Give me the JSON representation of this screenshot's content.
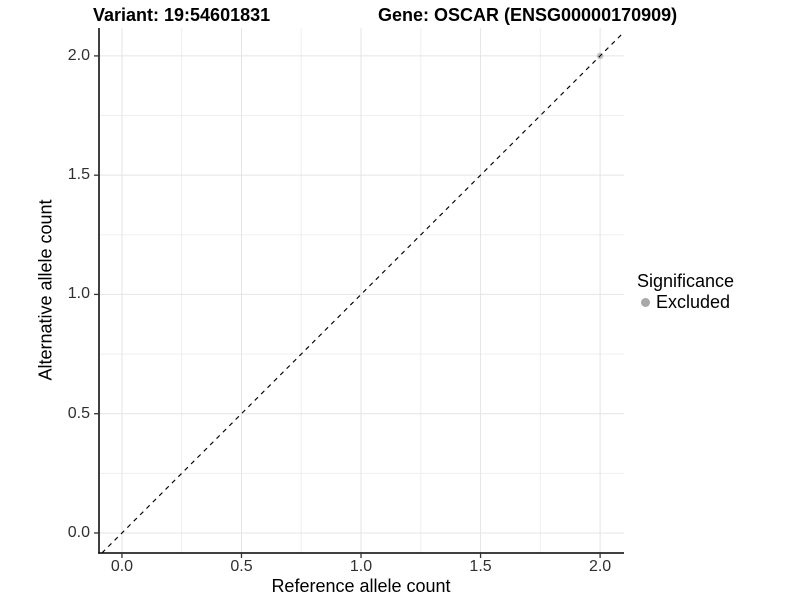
{
  "titles": {
    "variant": "Variant: 19:54601831",
    "gene": "Gene: OSCAR (ENSG00000170909)"
  },
  "legend": {
    "title": "Significance",
    "items": [
      {
        "label": "Excluded",
        "color": "#a8a8a8"
      }
    ]
  },
  "colors": {
    "background": "#ffffff",
    "axis_line": "#000000",
    "grid_major": "#e4e4e4",
    "grid_minor": "#efefef",
    "tick_mark": "#333333",
    "tick_text": "#303030",
    "dashed_line": "#000000",
    "point": "#c2c2c2"
  },
  "chart_data": {
    "type": "scatter",
    "title": "Variant: 19:54601831    Gene: OSCAR (ENSG00000170909)",
    "xlabel": "Reference allele count",
    "ylabel": "Alternative allele count",
    "xlim": [
      -0.096,
      2.1
    ],
    "ylim": [
      -0.084,
      2.117
    ],
    "x_ticks": [
      0.0,
      0.5,
      1.0,
      1.5,
      2.0
    ],
    "y_ticks": [
      0.0,
      0.5,
      1.0,
      1.5,
      2.0
    ],
    "x_tick_labels": [
      "0.0",
      "0.5",
      "1.0",
      "1.5",
      "2.0"
    ],
    "y_tick_labels": [
      "0.0",
      "0.5",
      "1.0",
      "1.5",
      "2.0"
    ],
    "x_minor_ticks": [
      0.25,
      0.75,
      1.25,
      1.75
    ],
    "y_minor_ticks": [
      0.25,
      0.75,
      1.25,
      1.75
    ],
    "grid": true,
    "legend_position": "right",
    "legend_title": "Significance",
    "series": [
      {
        "name": "Excluded",
        "color": "#c2c2c2",
        "points": [
          {
            "x": 2.0,
            "y": 2.0
          }
        ]
      }
    ],
    "reference_line": {
      "kind": "identity",
      "slope": 1,
      "intercept": 0,
      "style": "dashed",
      "color": "#000000"
    }
  }
}
